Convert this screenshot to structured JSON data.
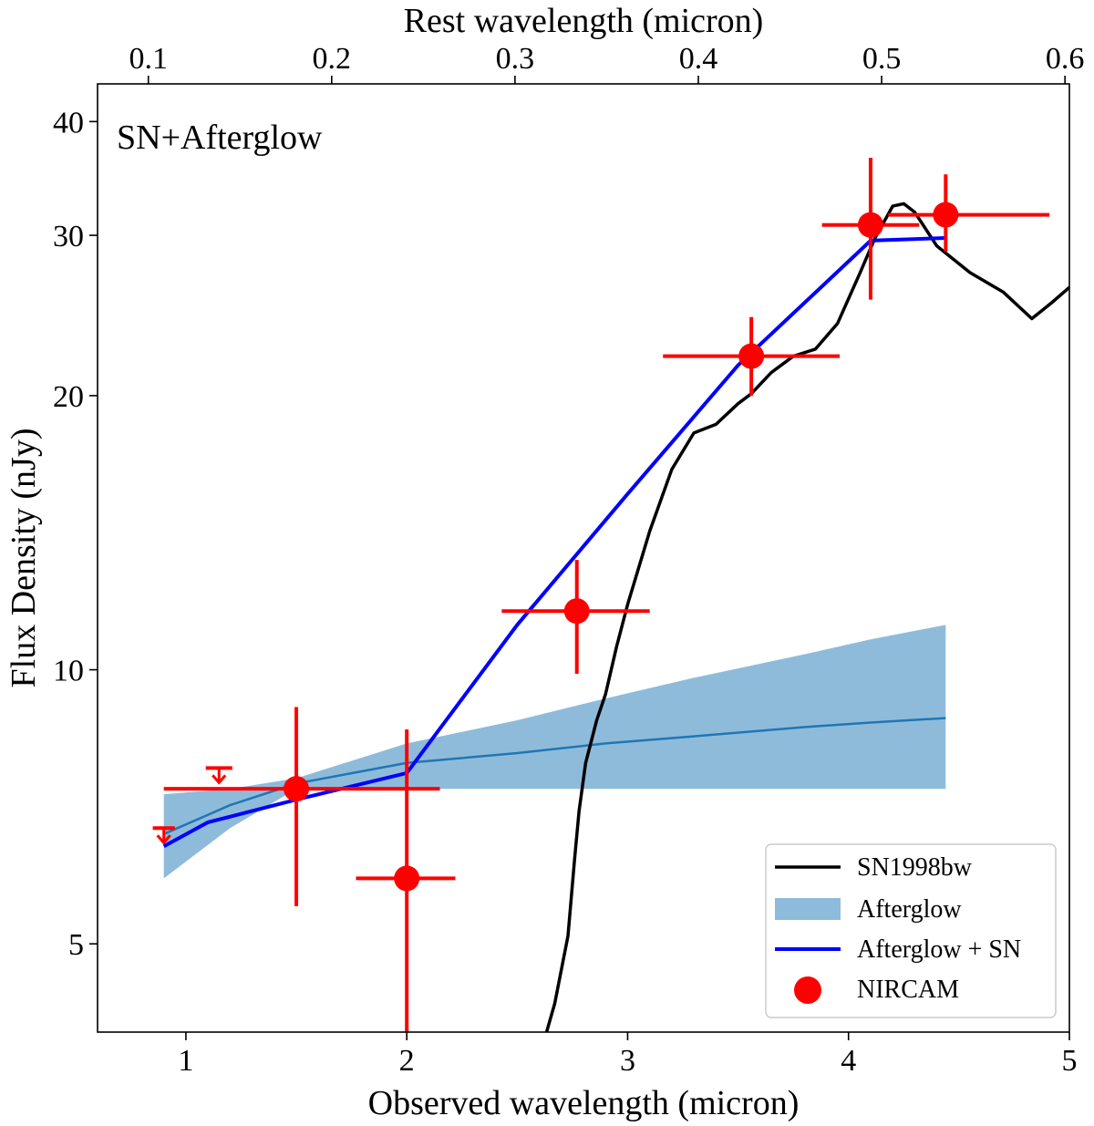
{
  "chart_data": {
    "type": "scatter",
    "annotation": "SN+Afterglow",
    "xlabel": "Observed wavelength (micron)",
    "ylabel": "Flux Density (nJy)",
    "top_xlabel": "Rest wavelength (micron)",
    "xlim": [
      0.6,
      5.0
    ],
    "ylim": [
      4.0,
      44.0
    ],
    "y_scale": "log",
    "rest_axis": {
      "redshift": 7.3
    },
    "x_ticks": [
      1,
      2,
      3,
      4,
      5
    ],
    "x_tick_labels": [
      "1",
      "2",
      "3",
      "4",
      "5"
    ],
    "y_ticks": [
      5,
      10,
      20,
      30,
      40
    ],
    "y_tick_labels": [
      "5",
      "10",
      "20",
      "30",
      "40"
    ],
    "top_ticks": [
      0.1,
      0.2,
      0.3,
      0.4,
      0.5,
      0.6
    ],
    "top_tick_labels": [
      "0.1",
      "0.2",
      "0.3",
      "0.4",
      "0.5",
      "0.6"
    ],
    "legend": {
      "location": "lower-right",
      "entries": [
        {
          "label": "SN1998bw",
          "kind": "line",
          "color": "#000000"
        },
        {
          "label": "Afterglow",
          "kind": "patch",
          "color": "#8fbbdb"
        },
        {
          "label": "Afterglow + SN",
          "kind": "line",
          "color": "#0000ff"
        },
        {
          "label": "NIRCAM",
          "kind": "marker",
          "color": "#ff0000"
        }
      ]
    },
    "colors": {
      "sn": "#000000",
      "afterglow_fill": "#8fbbdb",
      "afterglow_median": "#1f77b4",
      "combined": "#0000ff",
      "nircam": "#ff0000"
    },
    "series": [
      {
        "name": "NIRCAM",
        "kind": "errorbar",
        "points": [
          {
            "x": 1.5,
            "y": 7.4,
            "xerr": [
              0.6,
              0.65
            ],
            "yerr": [
              5.5,
              9.1
            ]
          },
          {
            "x": 2.0,
            "y": 5.9,
            "xerr": [
              0.23,
              0.22
            ],
            "yerr": [
              4.0,
              8.6
            ]
          },
          {
            "x": 2.77,
            "y": 11.6,
            "xerr": [
              0.34,
              0.33
            ],
            "yerr": [
              9.9,
              13.2
            ]
          },
          {
            "x": 3.56,
            "y": 22.1,
            "xerr": [
              0.4,
              0.4
            ],
            "yerr": [
              20.0,
              24.4
            ]
          },
          {
            "x": 4.1,
            "y": 30.8,
            "xerr": [
              0.22,
              0.22
            ],
            "yerr": [
              25.5,
              36.5
            ]
          },
          {
            "x": 4.44,
            "y": 31.6,
            "xerr": [
              0.26,
              0.47
            ],
            "yerr": [
              28.8,
              35.0
            ]
          }
        ]
      },
      {
        "name": "NIRCAM upper limits",
        "kind": "upper_limit",
        "points": [
          {
            "x": 0.9,
            "y": 6.7,
            "xerr": [
              0.05,
              0.05
            ]
          },
          {
            "x": 1.15,
            "y": 7.8,
            "xerr": [
              0.06,
              0.06
            ]
          }
        ]
      },
      {
        "name": "Afterglow",
        "kind": "band",
        "x": [
          0.9,
          1.2,
          1.5,
          2.0,
          2.5,
          2.9,
          3.3,
          3.8,
          4.1,
          4.44
        ],
        "lower": [
          5.9,
          6.7,
          7.4,
          7.4,
          7.4,
          7.4,
          7.4,
          7.4,
          7.4,
          7.4
        ],
        "upper": [
          7.3,
          7.4,
          7.6,
          8.3,
          8.8,
          9.3,
          9.8,
          10.4,
          10.8,
          11.2
        ],
        "median": [
          6.6,
          7.1,
          7.5,
          7.9,
          8.1,
          8.3,
          8.45,
          8.65,
          8.75,
          8.85
        ]
      },
      {
        "name": "Afterglow + SN",
        "kind": "line",
        "x": [
          0.9,
          1.1,
          1.5,
          2.0,
          2.5,
          3.0,
          3.5,
          4.1,
          4.44
        ],
        "y": [
          6.4,
          6.8,
          7.2,
          7.7,
          11.2,
          15.6,
          21.6,
          29.6,
          29.8
        ]
      },
      {
        "name": "SN1998bw",
        "kind": "line",
        "x": [
          2.62,
          2.67,
          2.73,
          2.76,
          2.78,
          2.81,
          2.86,
          2.9,
          2.95,
          3.0,
          3.1,
          3.2,
          3.3,
          3.4,
          3.5,
          3.56,
          3.65,
          3.75,
          3.85,
          3.95,
          4.05,
          4.12,
          4.2,
          4.25,
          4.3,
          4.4,
          4.55,
          4.7,
          4.83,
          4.92,
          5.0
        ],
        "y": [
          3.9,
          4.3,
          5.1,
          6.2,
          7.0,
          7.9,
          8.8,
          9.4,
          10.6,
          11.8,
          14.2,
          16.6,
          18.2,
          18.6,
          19.6,
          20.1,
          21.2,
          22.1,
          22.5,
          24.0,
          27.2,
          29.8,
          32.3,
          32.5,
          31.8,
          29.2,
          27.3,
          26.0,
          24.3,
          25.3,
          26.3
        ]
      }
    ]
  }
}
